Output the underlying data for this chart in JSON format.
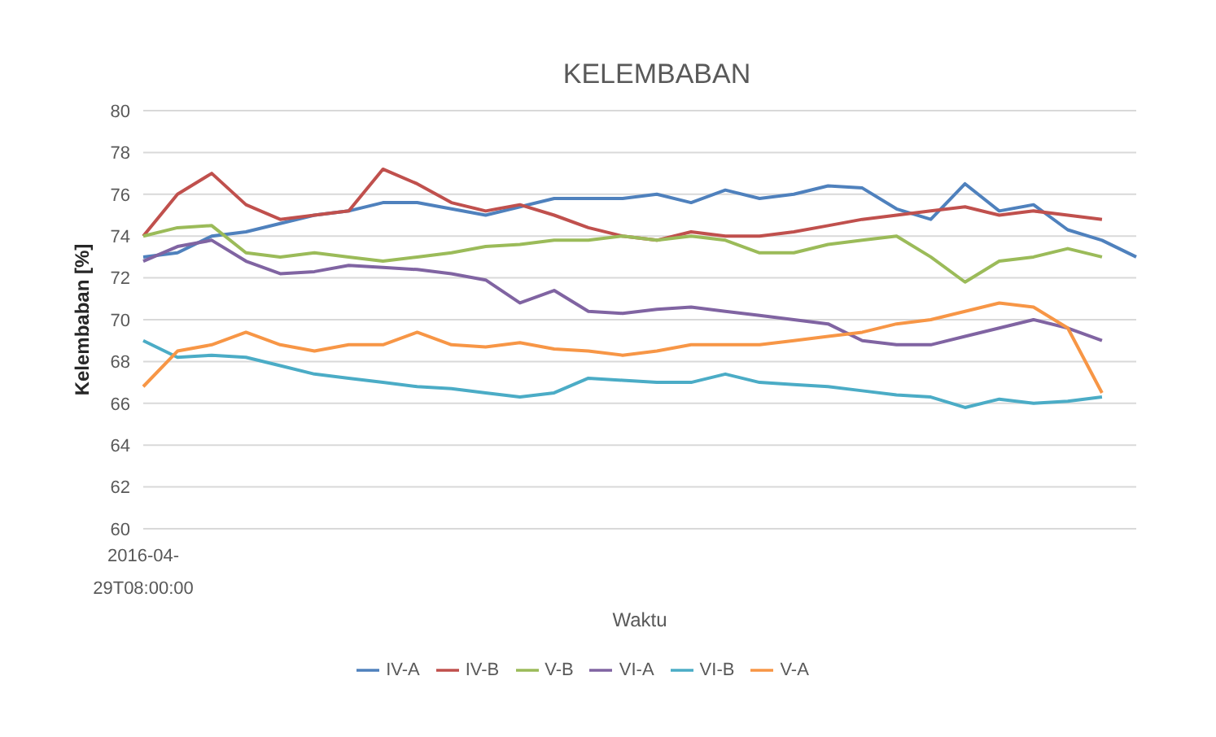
{
  "chart_data": {
    "type": "line",
    "title": "KELEMBABAN",
    "xlabel": "Waktu",
    "ylabel": "Kelembaban [%]",
    "categories": [
      "2016-04-29T08:00:00",
      null,
      null,
      null,
      null,
      null,
      null,
      null,
      null,
      null,
      null,
      null,
      null,
      null,
      null,
      null,
      null,
      null,
      null,
      null,
      null,
      null,
      null,
      null,
      null,
      null,
      null,
      null,
      null,
      null
    ],
    "series": [
      {
        "name": "IV-A",
        "color": "#4f81bd",
        "values": [
          73,
          73.2,
          74,
          74.2,
          74.6,
          75,
          75.2,
          75.6,
          75.6,
          75.3,
          75,
          75.4,
          75.8,
          75.8,
          75.8,
          76,
          75.6,
          76.2,
          75.8,
          76,
          76.4,
          76.3,
          75.3,
          74.8,
          76.5,
          75.2,
          75.5,
          74.3,
          73.8,
          73
        ]
      },
      {
        "name": "IV-B",
        "color": "#c0504d",
        "values": [
          74,
          76,
          77,
          75.5,
          74.8,
          75,
          75.2,
          77.2,
          76.5,
          75.6,
          75.2,
          75.5,
          75,
          74.4,
          74,
          73.8,
          74.2,
          74,
          74,
          74.2,
          74.5,
          74.8,
          75,
          75.2,
          75.4,
          75,
          75.2,
          75,
          74.8,
          null
        ]
      },
      {
        "name": "V-B",
        "color": "#9bbb59",
        "values": [
          74,
          74.4,
          74.5,
          73.2,
          73,
          73.2,
          73,
          72.8,
          73,
          73.2,
          73.5,
          73.6,
          73.8,
          73.8,
          74,
          73.8,
          74,
          73.8,
          73.2,
          73.2,
          73.6,
          73.8,
          74,
          73,
          71.8,
          72.8,
          73,
          73.4,
          73,
          null
        ]
      },
      {
        "name": "VI-A",
        "color": "#8064a2",
        "values": [
          72.8,
          73.5,
          73.8,
          72.8,
          72.2,
          72.3,
          72.6,
          72.5,
          72.4,
          72.2,
          71.9,
          70.8,
          71.4,
          70.4,
          70.3,
          70.5,
          70.6,
          70.4,
          70.2,
          70,
          69.8,
          69,
          68.8,
          68.8,
          69.2,
          69.6,
          70,
          69.6,
          69,
          null
        ]
      },
      {
        "name": "VI-B",
        "color": "#4bacc6",
        "values": [
          69,
          68.2,
          68.3,
          68.2,
          67.8,
          67.4,
          67.2,
          67,
          66.8,
          66.7,
          66.5,
          66.3,
          66.5,
          67.2,
          67.1,
          67,
          67,
          67.4,
          67,
          66.9,
          66.8,
          66.6,
          66.4,
          66.3,
          65.8,
          66.2,
          66,
          66.1,
          66.3,
          null
        ]
      },
      {
        "name": "V-A",
        "color": "#f79646",
        "values": [
          66.8,
          68.5,
          68.8,
          69.4,
          68.8,
          68.5,
          68.8,
          68.8,
          69.4,
          68.8,
          68.7,
          68.9,
          68.6,
          68.5,
          68.3,
          68.5,
          68.8,
          68.8,
          68.8,
          69,
          69.2,
          69.4,
          69.8,
          70,
          70.4,
          70.8,
          70.6,
          69.6,
          66.5,
          null
        ]
      }
    ],
    "ylim": [
      60,
      80
    ],
    "yticks": [
      60,
      62,
      64,
      66,
      68,
      70,
      72,
      74,
      76,
      78,
      80
    ],
    "grid": "y",
    "legend": "bottom",
    "marker": "none",
    "line_style": "solid"
  }
}
